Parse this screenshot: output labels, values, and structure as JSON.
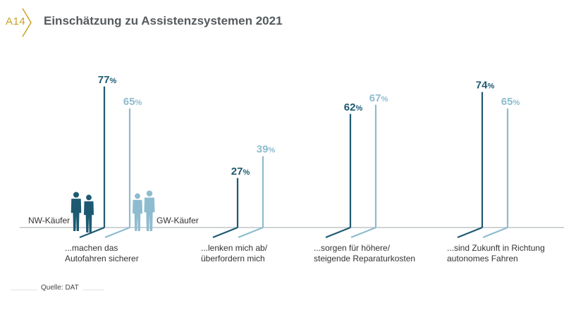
{
  "badge": "A14",
  "title": "Einschätzung zu Assistenzsystemen 2021",
  "source": "Quelle: DAT",
  "colors": {
    "nw": "#1d5a72",
    "gw": "#8dbccf",
    "baseline": "#cfd3d6",
    "text": "#333333",
    "badge": "#c9a227"
  },
  "chart_data": {
    "type": "bar",
    "categories": [
      "...machen das\nAutofahren sicherer",
      "...lenken mich ab/\nüberfordern mich",
      "...sorgen für höhere/\nsteigende Reparaturkosten",
      "...sind Zukunft in Richtung\nautonomes Fahren"
    ],
    "series": [
      {
        "name": "NW-Käufer",
        "values": [
          77,
          27,
          62,
          74
        ]
      },
      {
        "name": "GW-Käufer",
        "values": [
          65,
          39,
          67,
          65
        ]
      }
    ],
    "unit": "%",
    "ylim": [
      0,
      100
    ],
    "grid": false
  }
}
